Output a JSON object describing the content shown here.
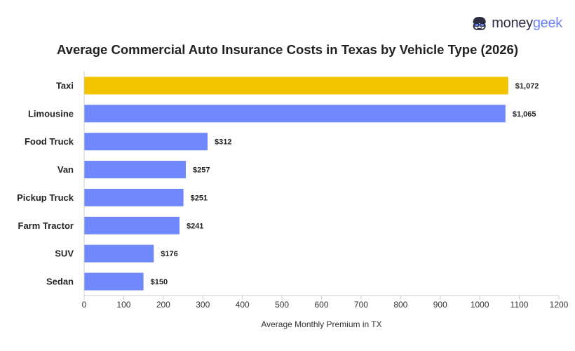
{
  "brand": {
    "logo_name": "moneygeek",
    "logo_part1": "money",
    "logo_part2": "geek",
    "icon": "moneygeek-face-icon",
    "colors": {
      "dark": "#2b2d42",
      "accent": "#6e85f5"
    }
  },
  "chart_data": {
    "type": "bar",
    "orientation": "horizontal",
    "title": "Average Commercial Auto Insurance Costs in Texas by Vehicle Type (2026)",
    "xlabel": "Average Monthly Premium in TX",
    "ylabel": "",
    "categories": [
      "Taxi",
      "Limousine",
      "Food Truck",
      "Van",
      "Pickup Truck",
      "Farm Tractor",
      "SUV",
      "Sedan"
    ],
    "values": [
      1072,
      1065,
      312,
      257,
      251,
      241,
      176,
      150
    ],
    "value_labels": [
      "$1,072",
      "$1,065",
      "$312",
      "$257",
      "$251",
      "$241",
      "$176",
      "$150"
    ],
    "xlim": [
      0,
      1200
    ],
    "xticks": [
      0,
      100,
      200,
      300,
      400,
      500,
      600,
      700,
      800,
      900,
      1000,
      1100,
      1200
    ],
    "highlight_index": 0,
    "colors": {
      "default": "#7088fb",
      "highlight": "#f4c300"
    },
    "grid": false,
    "legend": "none"
  }
}
